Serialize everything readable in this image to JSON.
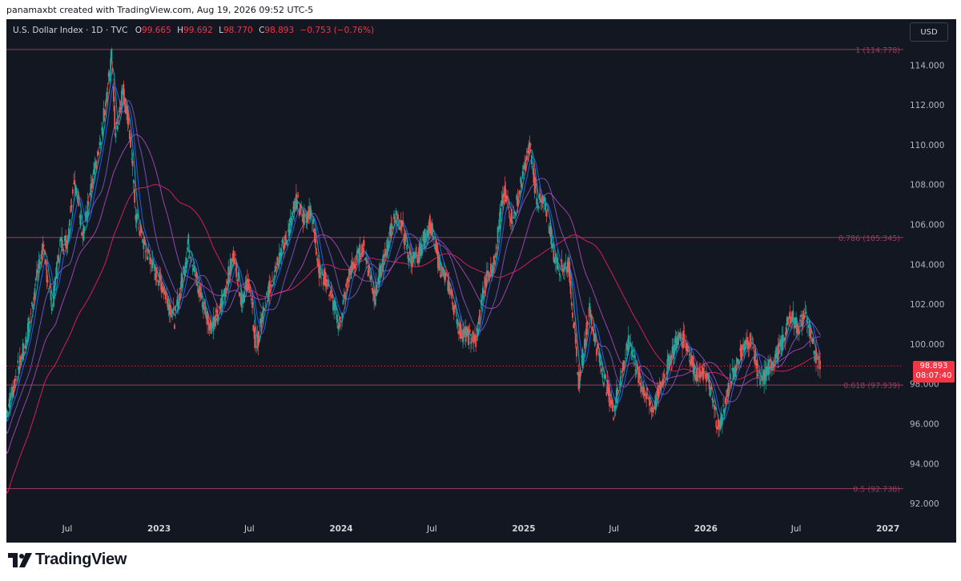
{
  "caption": "panamaxbt created with TradingView.com, Aug 19, 2026 09:52 UTC-5",
  "brand": {
    "name": "TradingView"
  },
  "currency_button": "USD",
  "legend": {
    "symbol": "U.S. Dollar Index · 1D · TVC",
    "o_label": "O",
    "o_value": "99.665",
    "h_label": "H",
    "h_value": "99.692",
    "l_label": "L",
    "l_value": "98.770",
    "c_label": "C",
    "c_value": "98.893",
    "change": "−0.753 (−0.76%)"
  },
  "last_price": {
    "value": "98.893",
    "countdown": "08:07:40"
  },
  "colors": {
    "background": "#131722",
    "up": "#26a69a",
    "down": "#ef5350",
    "fib_line": "#9c3b5b",
    "last_price": "#f23645",
    "axis_text": "#b2b5be",
    "ma1": "#00bcd4",
    "ma2": "#2962ff",
    "ma3": "#7e57c2",
    "ma4": "#ab47bc",
    "ma5": "#e91e63"
  },
  "chart_data": {
    "type": "line",
    "title": "U.S. Dollar Index · 1D · TVC",
    "ylim": [
      91.4,
      116.3
    ],
    "xlim": [
      "2022-03-01",
      "2027-02-01"
    ],
    "yticks": [
      "114.000",
      "112.000",
      "110.000",
      "108.000",
      "106.000",
      "104.000",
      "102.000",
      "100.000",
      "98.000",
      "96.000",
      "94.000",
      "92.000"
    ],
    "xticks": [
      {
        "label": "Jul",
        "date": "2022-07-01"
      },
      {
        "label": "2023",
        "date": "2023-01-01"
      },
      {
        "label": "Jul",
        "date": "2023-07-01"
      },
      {
        "label": "2024",
        "date": "2024-01-01"
      },
      {
        "label": "Jul",
        "date": "2024-07-01"
      },
      {
        "label": "2025",
        "date": "2025-01-01"
      },
      {
        "label": "Jul",
        "date": "2025-07-01"
      },
      {
        "label": "2026",
        "date": "2026-01-01"
      },
      {
        "label": "Jul",
        "date": "2026-07-01"
      },
      {
        "label": "2027",
        "date": "2027-01-01"
      }
    ],
    "fib_levels": [
      {
        "label": "1 (114.778)",
        "value": 114.778
      },
      {
        "label": "0.786 (105.345)",
        "value": 105.345
      },
      {
        "label": "0.618 (97.939)",
        "value": 97.939
      },
      {
        "label": "0.5 (92.738)",
        "value": 92.738
      }
    ],
    "last_price": 98.893,
    "series": [
      {
        "values_kind": "approximate closing path",
        "points": [
          [
            "2022-03-01",
            96.5
          ],
          [
            "2022-03-20",
            98.4
          ],
          [
            "2022-04-10",
            100.2
          ],
          [
            "2022-05-01",
            103.5
          ],
          [
            "2022-05-13",
            104.8
          ],
          [
            "2022-06-01",
            101.8
          ],
          [
            "2022-06-15",
            105.0
          ],
          [
            "2022-07-01",
            105.2
          ],
          [
            "2022-07-14",
            108.4
          ],
          [
            "2022-08-01",
            105.5
          ],
          [
            "2022-08-20",
            108.0
          ],
          [
            "2022-09-05",
            110.0
          ],
          [
            "2022-09-28",
            114.6
          ],
          [
            "2022-10-05",
            110.5
          ],
          [
            "2022-10-20",
            112.8
          ],
          [
            "2022-11-01",
            111.2
          ],
          [
            "2022-11-15",
            106.5
          ],
          [
            "2022-12-01",
            105.0
          ],
          [
            "2022-12-20",
            103.8
          ],
          [
            "2023-01-10",
            102.8
          ],
          [
            "2023-02-01",
            101.2
          ],
          [
            "2023-03-01",
            105.1
          ],
          [
            "2023-03-20",
            102.8
          ],
          [
            "2023-04-14",
            100.9
          ],
          [
            "2023-05-01",
            101.5
          ],
          [
            "2023-05-31",
            104.6
          ],
          [
            "2023-06-15",
            102.2
          ],
          [
            "2023-06-30",
            103.2
          ],
          [
            "2023-07-14",
            99.7
          ],
          [
            "2023-08-01",
            102.0
          ],
          [
            "2023-08-25",
            104.2
          ],
          [
            "2023-09-15",
            105.4
          ],
          [
            "2023-10-03",
            107.2
          ],
          [
            "2023-10-20",
            106.2
          ],
          [
            "2023-11-01",
            106.8
          ],
          [
            "2023-11-20",
            103.4
          ],
          [
            "2023-12-01",
            103.3
          ],
          [
            "2023-12-28",
            100.9
          ],
          [
            "2024-01-15",
            103.4
          ],
          [
            "2024-02-14",
            104.9
          ],
          [
            "2024-03-08",
            102.4
          ],
          [
            "2024-04-01",
            104.8
          ],
          [
            "2024-04-16",
            106.4
          ],
          [
            "2024-05-01",
            106.0
          ],
          [
            "2024-05-15",
            104.4
          ],
          [
            "2024-06-01",
            104.2
          ],
          [
            "2024-06-26",
            106.1
          ],
          [
            "2024-07-15",
            104.0
          ],
          [
            "2024-08-05",
            102.8
          ],
          [
            "2024-08-27",
            100.6
          ],
          [
            "2024-09-27",
            100.2
          ],
          [
            "2024-10-15",
            103.2
          ],
          [
            "2024-11-01",
            104.0
          ],
          [
            "2024-11-22",
            107.6
          ],
          [
            "2024-12-10",
            106.2
          ],
          [
            "2025-01-13",
            110.0
          ],
          [
            "2025-01-27",
            107.2
          ],
          [
            "2025-02-15",
            106.9
          ],
          [
            "2025-03-03",
            104.3
          ],
          [
            "2025-03-15",
            103.8
          ],
          [
            "2025-04-01",
            104.0
          ],
          [
            "2025-04-21",
            98.0
          ],
          [
            "2025-05-12",
            101.8
          ],
          [
            "2025-06-01",
            99.2
          ],
          [
            "2025-06-30",
            96.6
          ],
          [
            "2025-07-15",
            98.5
          ],
          [
            "2025-08-01",
            100.2
          ],
          [
            "2025-08-20",
            98.2
          ],
          [
            "2025-09-17",
            96.7
          ],
          [
            "2025-10-01",
            97.8
          ],
          [
            "2025-11-05",
            100.3
          ],
          [
            "2025-11-20",
            100.2
          ],
          [
            "2025-12-15",
            98.3
          ],
          [
            "2026-01-01",
            98.6
          ],
          [
            "2026-01-27",
            95.7
          ],
          [
            "2026-02-15",
            97.8
          ],
          [
            "2026-03-10",
            99.5
          ],
          [
            "2026-04-01",
            100.3
          ],
          [
            "2026-04-20",
            98.0
          ],
          [
            "2026-05-10",
            98.9
          ],
          [
            "2026-06-01",
            99.9
          ],
          [
            "2026-06-20",
            101.5
          ],
          [
            "2026-07-05",
            100.8
          ],
          [
            "2026-07-20",
            101.6
          ],
          [
            "2026-08-01",
            100.0
          ],
          [
            "2026-08-19",
            98.893
          ]
        ]
      }
    ]
  }
}
